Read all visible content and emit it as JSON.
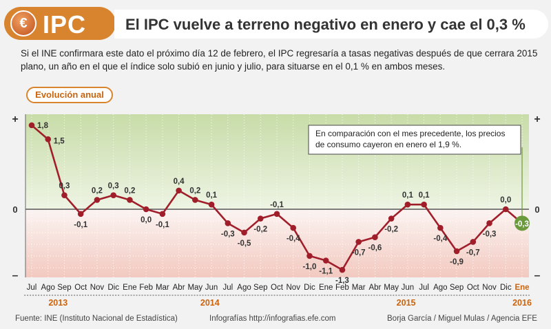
{
  "header": {
    "badge_label": "IPC",
    "coin_symbol": "€",
    "title": "El IPC vuelve a terreno negativo en enero y cae el 0,3 %",
    "subtitle": "Si el INE confirmara este dato el próximo día 12 de febrero, el IPC regresaría a tasas negativas después de que cerrara 2015 plano, un año en el que el índice solo subió en junio y julio, para situarse en el 0,1 % en ambos meses."
  },
  "section_label": "Evolución anual",
  "annotation": "En comparación con el mes precedente, los precios de consumo cayeron en enero el 1,9 %.",
  "footer": {
    "source": "Fuente: INE (Instituto Nacional de Estadística)",
    "credit_site": "Infografías http://infografias.efe.com",
    "authors": "Borja García / Miguel Mulas / Agencia EFE"
  },
  "colors": {
    "accent": "#d8842e",
    "line": "#a01e2a",
    "highlight": "#6b9a3c",
    "positive_zone": "#c8dca8",
    "negative_zone": "#f2c9c0"
  },
  "chart_data": {
    "type": "line",
    "categories": [
      "Jul",
      "Ago",
      "Sep",
      "Oct",
      "Nov",
      "Dic",
      "Ene",
      "Feb",
      "Mar",
      "Abr",
      "May",
      "Jun",
      "Jul",
      "Ago",
      "Sep",
      "Oct",
      "Nov",
      "Dic",
      "Ene",
      "Feb",
      "Mar",
      "Abr",
      "May",
      "Jun",
      "Jul",
      "Ago",
      "Sep",
      "Oct",
      "Nov",
      "Dic",
      "Ene"
    ],
    "values": [
      1.8,
      1.5,
      0.3,
      -0.1,
      0.2,
      0.3,
      0.2,
      0.0,
      -0.1,
      0.4,
      0.2,
      0.1,
      -0.3,
      -0.5,
      -0.2,
      -0.1,
      -0.4,
      -1.0,
      -1.1,
      -1.3,
      -0.7,
      -0.6,
      -0.2,
      0.1,
      0.1,
      -0.4,
      -0.9,
      -0.7,
      -0.3,
      0.0,
      -0.3
    ],
    "value_labels": [
      "1,8",
      "1,5",
      "0,3",
      "-0,1",
      "0,2",
      "0,3",
      "0,2",
      "0,0",
      "-0,1",
      "0,4",
      "0,2",
      "0,1",
      "-0,3",
      "-0,5",
      "-0,2",
      "-0,1",
      "-0,4",
      "-1,0",
      "-1,1",
      "-1,3",
      "-0,7",
      "-0,6",
      "-0,2",
      "0,1",
      "0,1",
      "-0,4",
      "-0,9",
      "-0,7",
      "-0,3",
      "0,0",
      "-0,3"
    ],
    "years": [
      {
        "label": "2013",
        "start": 0,
        "end": 5
      },
      {
        "label": "2014",
        "start": 6,
        "end": 17
      },
      {
        "label": "2015",
        "start": 18,
        "end": 29
      },
      {
        "label": "2016",
        "start": 30,
        "end": 30
      }
    ],
    "y_axis_labels": {
      "top": "+",
      "zero": "0",
      "bottom": "–"
    },
    "highlight_index": 30,
    "ylim": [
      -1.4,
      2.0
    ]
  }
}
